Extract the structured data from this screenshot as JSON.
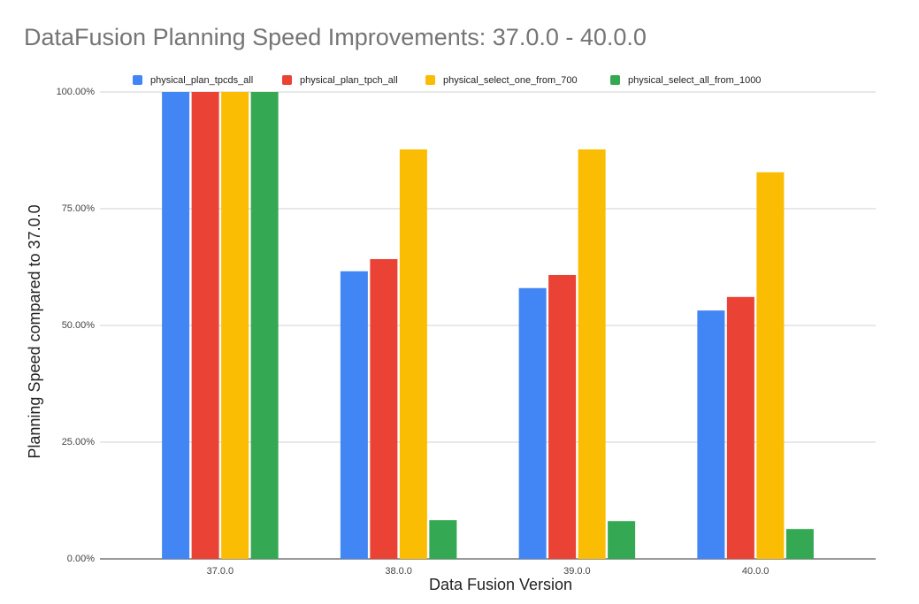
{
  "chart_data": {
    "type": "bar",
    "title": "DataFusion Planning Speed Improvements: 37.0.0 - 40.0.0",
    "x_label": "Data Fusion Version",
    "y_label": "Planning Speed compared to 37.0.0",
    "categories": [
      "37.0.0",
      "38.0.0",
      "39.0.0",
      "40.0.0"
    ],
    "series": [
      {
        "name": "physical_plan_tpcds_all",
        "color": "#4285f4",
        "values": [
          100,
          61.6,
          58.0,
          53.2
        ]
      },
      {
        "name": "physical_plan_tpch_all",
        "color": "#ea4335",
        "values": [
          100,
          64.2,
          60.8,
          56.1
        ]
      },
      {
        "name": "physical_select_one_from_700",
        "color": "#fbbc04",
        "values": [
          100,
          87.7,
          87.7,
          82.8
        ]
      },
      {
        "name": "physical_select_all_from_1000",
        "color": "#34a853",
        "values": [
          100,
          8.3,
          8.1,
          6.4
        ]
      }
    ],
    "ylim": [
      0,
      100
    ],
    "yticks": [
      {
        "value": 0,
        "label": "0.00%"
      },
      {
        "value": 25,
        "label": "25.00%"
      },
      {
        "value": 50,
        "label": "50.00%"
      },
      {
        "value": 75,
        "label": "75.00%"
      },
      {
        "value": 100,
        "label": "100.00%"
      }
    ],
    "grid": true,
    "legend": "top"
  }
}
